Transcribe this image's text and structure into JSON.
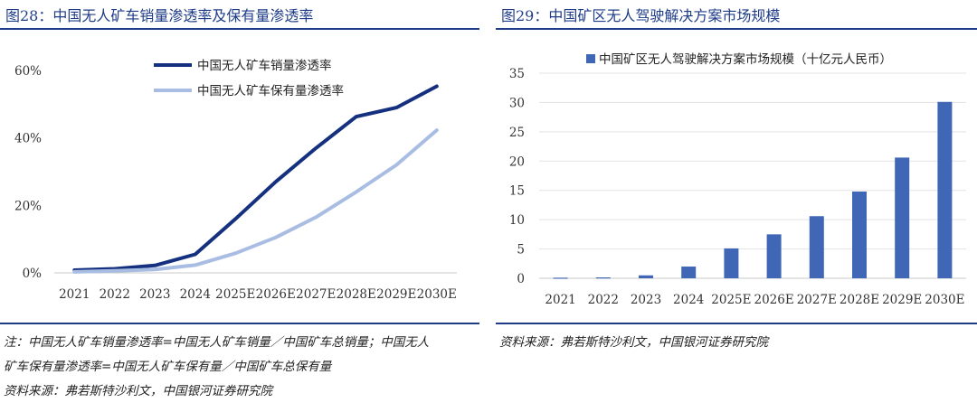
{
  "left": {
    "title": "图28：中国无人矿车销量渗透率及保有量渗透率",
    "notes": [
      "注：中国无人矿车销量渗透率=中国无人矿车销量／中国矿车总销量；中国无人",
      "矿车保有量渗透率=中国无人矿车保有量／中国矿车总保有量",
      "资料来源：弗若斯特沙利文，中国银河证券研究院"
    ]
  },
  "right": {
    "title": "图29：中国矿区无人驾驶解决方案市场规模",
    "notes": [
      "资料来源：弗若斯特沙利文，中国银河证券研究院"
    ]
  },
  "chart_data": [
    {
      "type": "line",
      "title": "",
      "categories": [
        "2021",
        "2022",
        "2023",
        "2024",
        "2025E",
        "2026E",
        "2027E",
        "2028E",
        "2029E",
        "2030E"
      ],
      "series": [
        {
          "name": "中国无人矿车销量渗透率",
          "color": "#14307e",
          "values": [
            0.8,
            1.2,
            2.2,
            5.5,
            16.0,
            27.0,
            37.0,
            46.3,
            49.0,
            55.3
          ]
        },
        {
          "name": "中国无人矿车保有量渗透率",
          "color": "#a9bde3",
          "values": [
            0.3,
            0.6,
            1.0,
            2.3,
            5.8,
            10.5,
            16.5,
            24.0,
            32.0,
            42.3
          ]
        }
      ],
      "yticks": [
        "0%",
        "20%",
        "40%",
        "60%"
      ],
      "ylim": [
        0,
        60
      ],
      "legend_position": "top-center"
    },
    {
      "type": "bar",
      "title": "",
      "categories": [
        "2021",
        "2022",
        "2023",
        "2024",
        "2025E",
        "2026E",
        "2027E",
        "2028E",
        "2029E",
        "2030E"
      ],
      "series": [
        {
          "name": "中国矿区无人驾驶解决方案市场规模（十亿元人民币）",
          "color": "#3f67b5",
          "values": [
            0.1,
            0.15,
            0.5,
            2.0,
            5.1,
            7.5,
            10.6,
            14.8,
            20.6,
            30.1
          ]
        }
      ],
      "yticks": [
        "0",
        "5",
        "10",
        "15",
        "20",
        "25",
        "30",
        "35"
      ],
      "ylim": [
        0,
        35
      ],
      "legend_position": "top-center"
    }
  ]
}
